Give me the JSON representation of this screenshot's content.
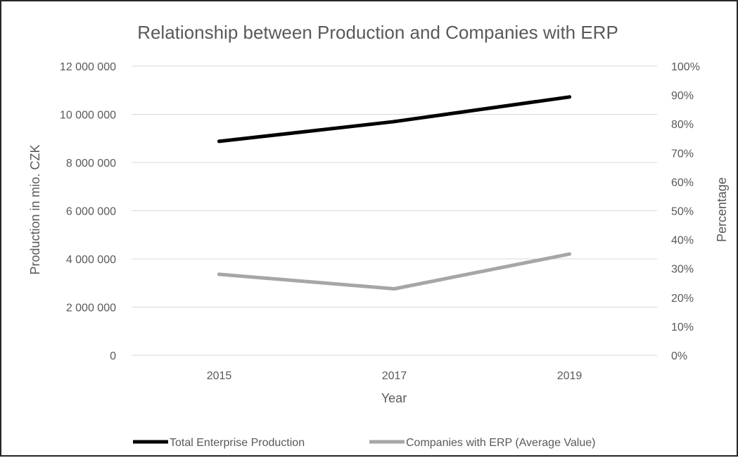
{
  "chart_data": {
    "type": "line",
    "title": "Relationship between Production and Companies with ERP",
    "xlabel": "Year",
    "ylabel": "Production in mio. CZK",
    "y2label": "Percentage",
    "categories": [
      "2015",
      "2017",
      "2019"
    ],
    "ylim": [
      0,
      12000000
    ],
    "y2lim": [
      0,
      1
    ],
    "y_ticks": [
      "0",
      "2 000 000",
      "4 000 000",
      "6 000 000",
      "8 000 000",
      "10 000 000",
      "12 000 000"
    ],
    "y2_ticks": [
      "0%",
      "10%",
      "20%",
      "30%",
      "40%",
      "50%",
      "60%",
      "70%",
      "80%",
      "90%",
      "100%"
    ],
    "grid": true,
    "legend_position": "bottom",
    "series": [
      {
        "name": "Total Enterprise Production",
        "axis": "left",
        "color": "#000000",
        "values": [
          8880000,
          9700000,
          10720000
        ]
      },
      {
        "name": "Companies with ERP (Average Value)",
        "axis": "right",
        "color": "#a6a6a6",
        "values": [
          0.28,
          0.23,
          0.35
        ]
      }
    ]
  }
}
